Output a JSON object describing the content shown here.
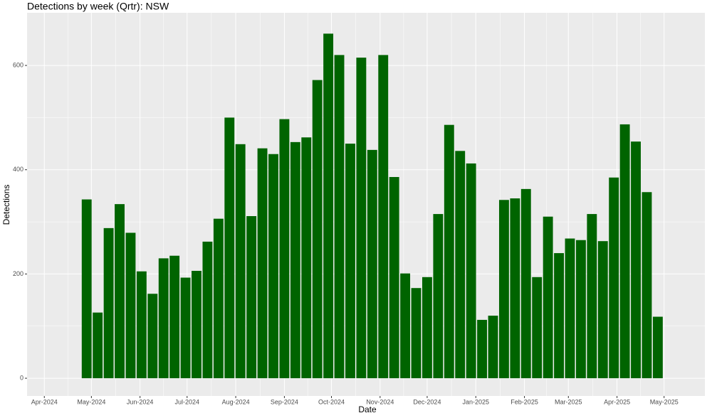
{
  "chart_data": {
    "type": "bar",
    "title": "Detections by week (Qrtr): NSW",
    "x_label": "Date",
    "y_label": "Detections",
    "x": [
      "2024-04-28",
      "2024-05-05",
      "2024-05-12",
      "2024-05-19",
      "2024-05-26",
      "2024-06-02",
      "2024-06-09",
      "2024-06-16",
      "2024-06-23",
      "2024-06-30",
      "2024-07-07",
      "2024-07-14",
      "2024-07-21",
      "2024-07-28",
      "2024-08-04",
      "2024-08-11",
      "2024-08-18",
      "2024-08-25",
      "2024-09-01",
      "2024-09-08",
      "2024-09-15",
      "2024-09-22",
      "2024-09-29",
      "2024-10-06",
      "2024-10-13",
      "2024-10-20",
      "2024-10-27",
      "2024-11-03",
      "2024-11-10",
      "2024-11-17",
      "2024-11-24",
      "2024-12-01",
      "2024-12-08",
      "2024-12-15",
      "2024-12-22",
      "2024-12-29",
      "2025-01-05",
      "2025-01-12",
      "2025-01-19",
      "2025-01-26",
      "2025-02-02",
      "2025-02-09",
      "2025-02-16",
      "2025-02-23",
      "2025-03-02",
      "2025-03-09",
      "2025-03-16",
      "2025-03-23",
      "2025-03-30",
      "2025-04-06",
      "2025-04-13",
      "2025-04-20",
      "2025-04-27"
    ],
    "values": [
      343,
      126,
      288,
      334,
      279,
      205,
      162,
      230,
      235,
      193,
      206,
      262,
      306,
      500,
      449,
      311,
      441,
      430,
      497,
      453,
      462,
      572,
      661,
      620,
      450,
      615,
      438,
      620,
      386,
      201,
      173,
      194,
      315,
      486,
      436,
      412,
      112,
      120,
      342,
      345,
      363,
      194,
      310,
      240,
      268,
      265,
      315,
      263,
      385,
      487,
      454,
      357,
      118
    ],
    "color": "#006400",
    "xlim": [
      "2024-03-21",
      "2025-05-27"
    ],
    "xticks": [
      {
        "value": "2024-04-01",
        "label": "Apr-2024"
      },
      {
        "value": "2024-05-01",
        "label": "May-2024"
      },
      {
        "value": "2024-06-01",
        "label": "Jun-2024"
      },
      {
        "value": "2024-07-01",
        "label": "Jul-2024"
      },
      {
        "value": "2024-08-01",
        "label": "Aug-2024"
      },
      {
        "value": "2024-09-01",
        "label": "Sep-2024"
      },
      {
        "value": "2024-10-01",
        "label": "Oct-2024"
      },
      {
        "value": "2024-11-01",
        "label": "Nov-2024"
      },
      {
        "value": "2024-12-01",
        "label": "Dec-2024"
      },
      {
        "value": "2025-01-01",
        "label": "Jan-2025"
      },
      {
        "value": "2025-02-01",
        "label": "Feb-2025"
      },
      {
        "value": "2025-03-01",
        "label": "Mar-2025"
      },
      {
        "value": "2025-04-01",
        "label": "Apr-2025"
      },
      {
        "value": "2025-05-01",
        "label": "May-2025"
      }
    ],
    "ylim": [
      -34,
      701
    ],
    "yticks": [
      0,
      200,
      400,
      600
    ],
    "grid": true
  }
}
